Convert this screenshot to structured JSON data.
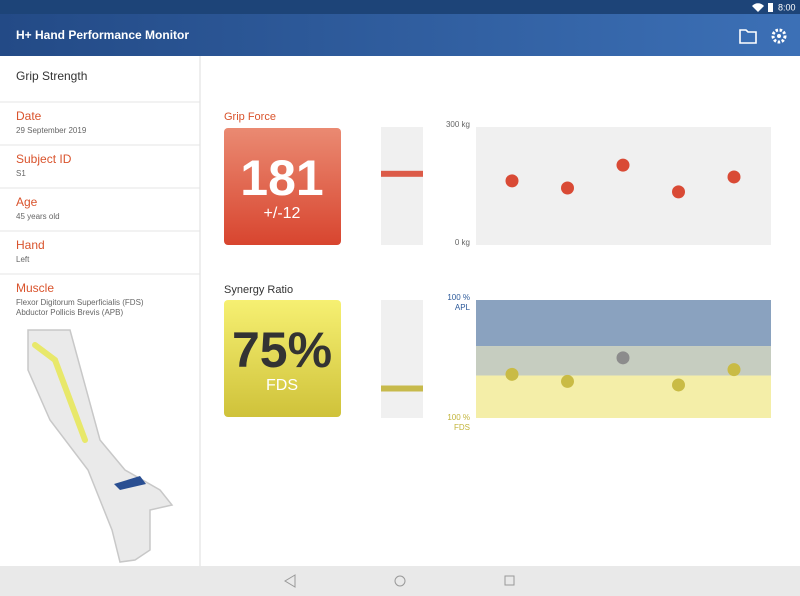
{
  "status_bar": {
    "time": "8:00"
  },
  "app_bar": {
    "title": "H+ Hand Performance Monitor"
  },
  "sidebar": {
    "heading": "Grip Strength",
    "fields": [
      {
        "label": "Date",
        "value": "29 September 2019"
      },
      {
        "label": "Subject ID",
        "value": "S1"
      },
      {
        "label": "Age",
        "value": "45 years old"
      },
      {
        "label": "Hand",
        "value": "Left"
      },
      {
        "label": "Muscle",
        "value": [
          "Flexor Digitorum Superficialis (FDS)",
          "Abductor Pollicis Brevis (APB)"
        ]
      }
    ]
  },
  "grip_force": {
    "title": "Grip Force",
    "value": 181,
    "spread": "+/-12",
    "chart_data": {
      "type": "scatter",
      "color": "#d94a35",
      "values": [
        163,
        145,
        203,
        135,
        173
      ],
      "ylim": [
        0,
        300
      ],
      "yticks": [
        {
          "value": 0,
          "label": "0 kg"
        },
        {
          "value": 300,
          "label": "300 kg"
        }
      ]
    }
  },
  "synergy_ratio": {
    "title": "Synergy Ratio",
    "value": 75,
    "value_label": "75%",
    "unit_label": "FDS",
    "chart_data": {
      "type": "scatter",
      "values": [
        63,
        69,
        49,
        72,
        59
      ],
      "colors": [
        "#c9bb45",
        "#c9bb45",
        "#8c8c8c",
        "#c9bb45",
        "#c9bb45"
      ],
      "bands": [
        {
          "from": 0,
          "to": 39,
          "color": "#8aa2bf"
        },
        {
          "from": 39,
          "to": 64,
          "color": "#c6cdc0"
        },
        {
          "from": 64,
          "to": 100,
          "color": "#f4eea8"
        }
      ],
      "ylim": [
        100,
        0
      ],
      "yticks": [
        {
          "value": 0,
          "label": [
            "100 %",
            "APL"
          ],
          "color": "#2d5a9a"
        },
        {
          "value": 100,
          "label": [
            "100 %",
            "FDS"
          ],
          "color": "#c2b43a"
        }
      ]
    }
  }
}
